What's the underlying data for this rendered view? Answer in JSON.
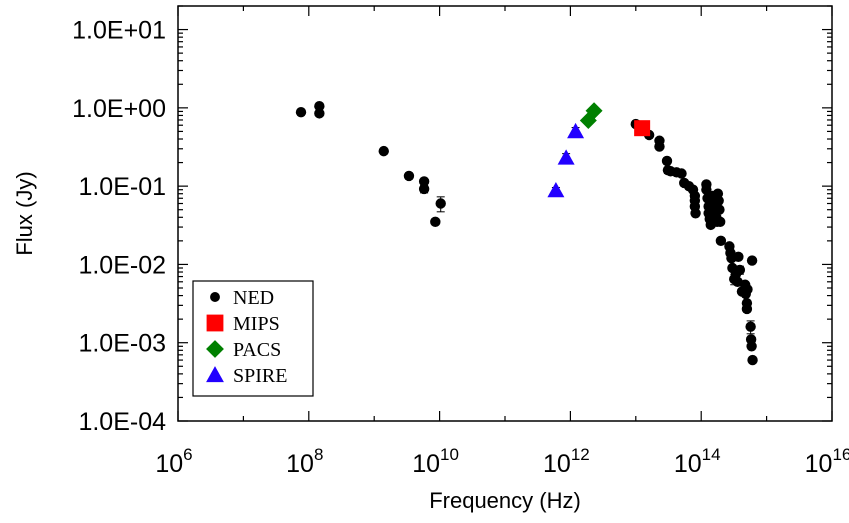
{
  "chart_data": {
    "type": "scatter",
    "x_scale": "log",
    "y_scale": "log",
    "xlabel": "Frequency (Hz)",
    "ylabel": "Flux (Jy)",
    "xlim": [
      1000000.0,
      1e+16
    ],
    "ylim": [
      0.0001,
      20
    ],
    "x_ticks": [
      {
        "value": 1000000.0,
        "mantissa": "10",
        "exp": "6"
      },
      {
        "value": 100000000.0,
        "mantissa": "10",
        "exp": "8"
      },
      {
        "value": 10000000000.0,
        "mantissa": "10",
        "exp": "10"
      },
      {
        "value": 1000000000000.0,
        "mantissa": "10",
        "exp": "12"
      },
      {
        "value": 100000000000000.0,
        "mantissa": "10",
        "exp": "14"
      },
      {
        "value": 1e+16,
        "mantissa": "10",
        "exp": "16"
      }
    ],
    "y_ticks": [
      {
        "value": 10,
        "label": "1.0E+01"
      },
      {
        "value": 1,
        "label": "1.0E+00"
      },
      {
        "value": 0.1,
        "label": "1.0E-01"
      },
      {
        "value": 0.01,
        "label": "1.0E-02"
      },
      {
        "value": 0.001,
        "label": "1.0E-03"
      },
      {
        "value": 0.0001,
        "label": "1.0E-04"
      }
    ],
    "legend_position": "bottom-left",
    "series": [
      {
        "name": "NED",
        "marker": "circle",
        "color": "#000000",
        "points": [
          {
            "x": 76000000.0,
            "y": 0.88,
            "err": 0.07
          },
          {
            "x": 145000000.0,
            "y": 1.05
          },
          {
            "x": 145000000.0,
            "y": 0.85
          },
          {
            "x": 1400000000.0,
            "y": 0.28
          },
          {
            "x": 3400000000.0,
            "y": 0.135
          },
          {
            "x": 5800000000.0,
            "y": 0.115
          },
          {
            "x": 5800000000.0,
            "y": 0.092,
            "err": 0.01
          },
          {
            "x": 8600000000.0,
            "y": 0.035
          },
          {
            "x": 10400000000.0,
            "y": 0.06,
            "err": 0.013
          },
          {
            "x": 10000000000000.0,
            "y": 0.62
          },
          {
            "x": 12000000000000.0,
            "y": 0.58
          },
          {
            "x": 16000000000000.0,
            "y": 0.45
          },
          {
            "x": 23000000000000.0,
            "y": 0.38
          },
          {
            "x": 23000000000000.0,
            "y": 0.32
          },
          {
            "x": 30000000000000.0,
            "y": 0.21
          },
          {
            "x": 31000000000000.0,
            "y": 0.16,
            "err": 0.015
          },
          {
            "x": 34000000000000.0,
            "y": 0.155
          },
          {
            "x": 42000000000000.0,
            "y": 0.15
          },
          {
            "x": 50000000000000.0,
            "y": 0.145
          },
          {
            "x": 55000000000000.0,
            "y": 0.11
          },
          {
            "x": 65000000000000.0,
            "y": 0.1
          },
          {
            "x": 75000000000000.0,
            "y": 0.09
          },
          {
            "x": 80000000000000.0,
            "y": 0.075
          },
          {
            "x": 80000000000000.0,
            "y": 0.065
          },
          {
            "x": 80000000000000.0,
            "y": 0.055
          },
          {
            "x": 82000000000000.0,
            "y": 0.045
          },
          {
            "x": 120000000000000.0,
            "y": 0.105
          },
          {
            "x": 120000000000000.0,
            "y": 0.09
          },
          {
            "x": 125000000000000.0,
            "y": 0.07
          },
          {
            "x": 130000000000000.0,
            "y": 0.055
          },
          {
            "x": 130000000000000.0,
            "y": 0.045
          },
          {
            "x": 135000000000000.0,
            "y": 0.038
          },
          {
            "x": 140000000000000.0,
            "y": 0.032
          },
          {
            "x": 150000000000000.0,
            "y": 0.075
          },
          {
            "x": 155000000000000.0,
            "y": 0.065
          },
          {
            "x": 160000000000000.0,
            "y": 0.05
          },
          {
            "x": 170000000000000.0,
            "y": 0.04
          },
          {
            "x": 175000000000000.0,
            "y": 0.035
          },
          {
            "x": 180000000000000.0,
            "y": 0.08
          },
          {
            "x": 185000000000000.0,
            "y": 0.065
          },
          {
            "x": 190000000000000.0,
            "y": 0.05
          },
          {
            "x": 195000000000000.0,
            "y": 0.035
          },
          {
            "x": 200000000000000.0,
            "y": 0.02
          },
          {
            "x": 270000000000000.0,
            "y": 0.017
          },
          {
            "x": 280000000000000.0,
            "y": 0.014
          },
          {
            "x": 290000000000000.0,
            "y": 0.012
          },
          {
            "x": 300000000000000.0,
            "y": 0.009
          },
          {
            "x": 320000000000000.0,
            "y": 0.0065,
            "err": 0.001
          },
          {
            "x": 340000000000000.0,
            "y": 0.0075
          },
          {
            "x": 360000000000000.0,
            "y": 0.006
          },
          {
            "x": 370000000000000.0,
            "y": 0.0125
          },
          {
            "x": 390000000000000.0,
            "y": 0.0085,
            "err": 0.001
          },
          {
            "x": 420000000000000.0,
            "y": 0.0045
          },
          {
            "x": 470000000000000.0,
            "y": 0.0055
          },
          {
            "x": 480000000000000.0,
            "y": 0.0042
          },
          {
            "x": 500000000000000.0,
            "y": 0.0032
          },
          {
            "x": 500000000000000.0,
            "y": 0.0027
          },
          {
            "x": 510000000000000.0,
            "y": 0.0048
          },
          {
            "x": 570000000000000.0,
            "y": 0.0016,
            "err": 0.0003
          },
          {
            "x": 580000000000000.0,
            "y": 0.0011
          },
          {
            "x": 590000000000000.0,
            "y": 0.0009
          },
          {
            "x": 600000000000000.0,
            "y": 0.0112
          },
          {
            "x": 610000000000000.0,
            "y": 0.0006
          }
        ]
      },
      {
        "name": "MIPS",
        "marker": "square",
        "color": "#ff0000",
        "points": [
          {
            "x": 12500000000000.0,
            "y": 0.55,
            "err": 0.06
          }
        ]
      },
      {
        "name": "PACS",
        "marker": "diamond",
        "color": "#008000",
        "points": [
          {
            "x": 1880000000000.0,
            "y": 0.69,
            "err": 0.06
          },
          {
            "x": 2300000000000.0,
            "y": 0.92,
            "err": 0.07
          }
        ]
      },
      {
        "name": "SPIRE",
        "marker": "triangle",
        "color": "#2200ff",
        "points": [
          {
            "x": 600000000000.0,
            "y": 0.088,
            "err": 0.008
          },
          {
            "x": 860000000000.0,
            "y": 0.23,
            "err": 0.03
          },
          {
            "x": 1200000000000.0,
            "y": 0.5,
            "err": 0.06
          }
        ]
      }
    ]
  }
}
